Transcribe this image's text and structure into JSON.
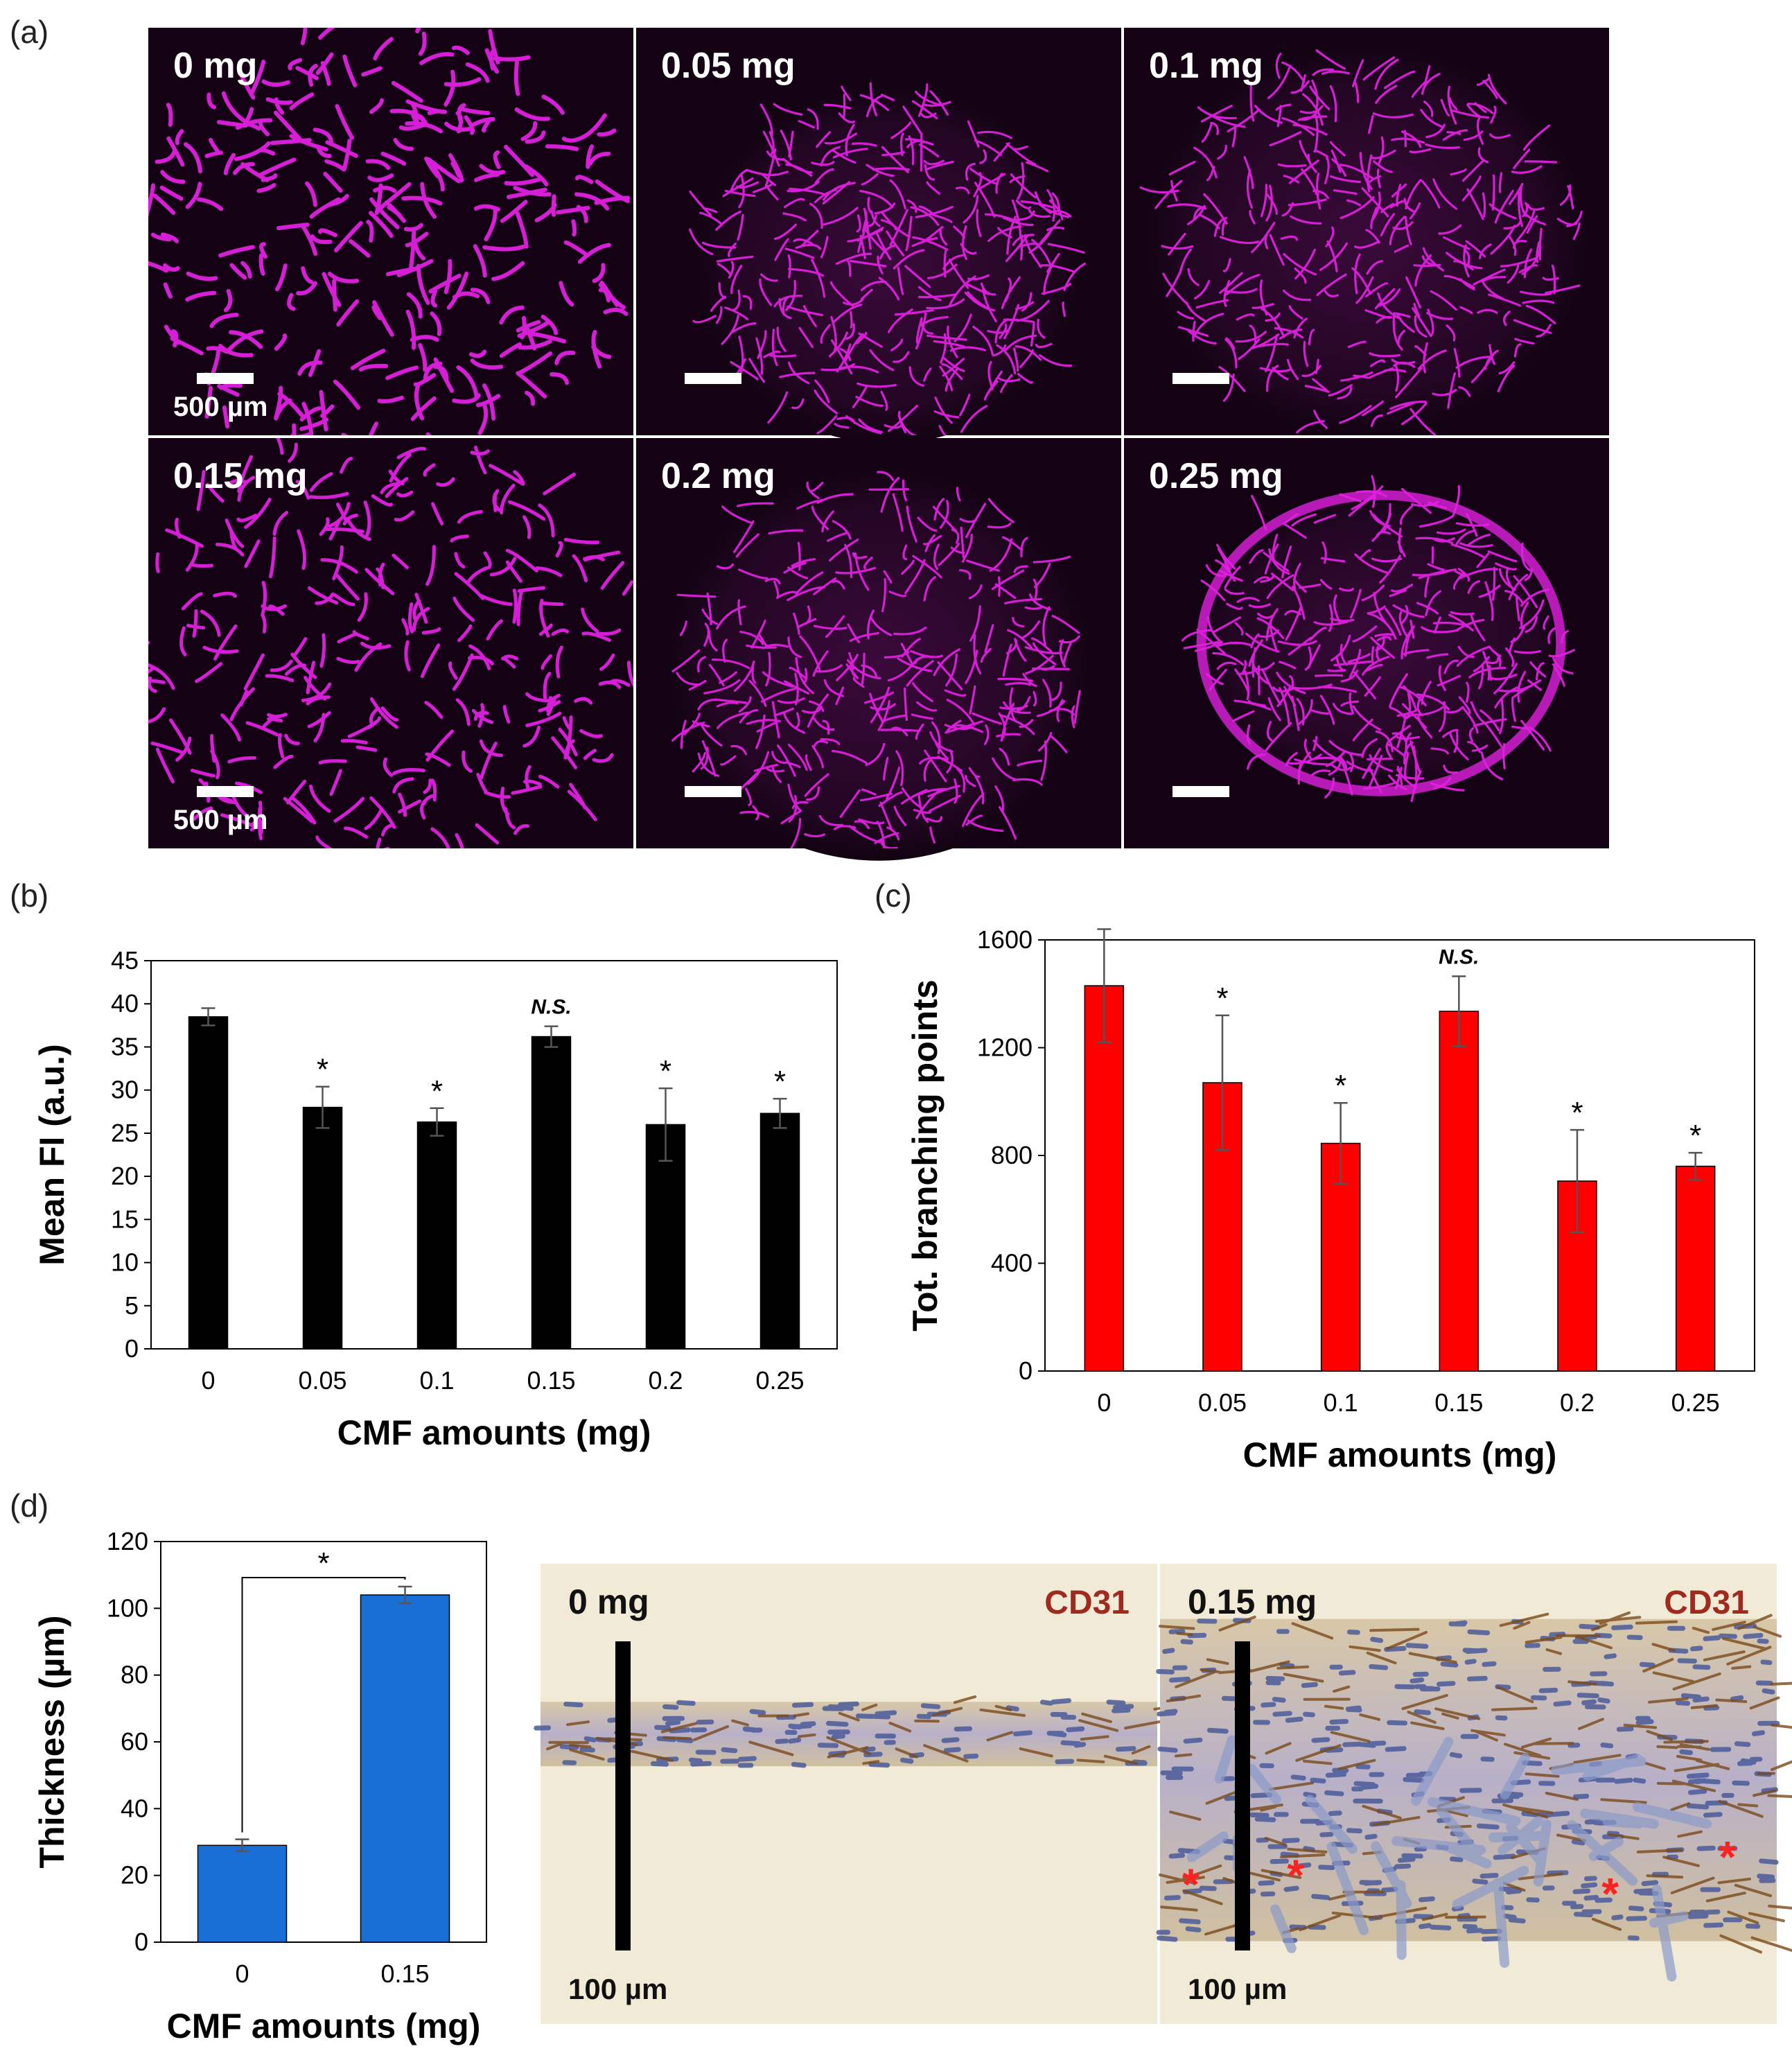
{
  "panel_letters": {
    "a": "(a)",
    "b": "(b)",
    "c": "(c)",
    "d": "(d)"
  },
  "panel_a": {
    "images": [
      {
        "label": "0 mg",
        "scale_label": "500 µm"
      },
      {
        "label": "0.05 mg",
        "scale_label": ""
      },
      {
        "label": "0.1 mg",
        "scale_label": ""
      },
      {
        "label": "0.15 mg",
        "scale_label": "500 µm"
      },
      {
        "label": "0.2 mg",
        "scale_label": ""
      },
      {
        "label": "0.25 mg",
        "scale_label": ""
      }
    ],
    "vessel_color": "#e020e0"
  },
  "panel_d_images": [
    {
      "label": "0 mg",
      "stain": "CD31",
      "scale_label": "100 µm"
    },
    {
      "label": "0.15 mg",
      "stain": "CD31",
      "scale_label": "100 µm"
    }
  ],
  "chart_data": [
    {
      "type": "bar",
      "panel": "b",
      "categories": [
        "0",
        "0.05",
        "0.1",
        "0.15",
        "0.2",
        "0.25"
      ],
      "values": [
        38.5,
        28.0,
        26.3,
        36.2,
        26.0,
        27.3
      ],
      "errors": [
        1.0,
        2.4,
        1.6,
        1.2,
        4.2,
        1.7
      ],
      "markers": [
        "",
        "*",
        "*",
        "N.S.",
        "*",
        "*"
      ],
      "xlabel": "CMF amounts (mg)",
      "ylabel": "Mean FI (a.u.)",
      "ylim": [
        0,
        45
      ],
      "yticks": [
        "0",
        "5",
        "10",
        "15",
        "20",
        "25",
        "30",
        "35",
        "40",
        "45"
      ],
      "color": "#000000"
    },
    {
      "type": "bar",
      "panel": "c",
      "categories": [
        "0",
        "0.05",
        "0.1",
        "0.15",
        "0.2",
        "0.25"
      ],
      "values": [
        1430,
        1070,
        845,
        1335,
        705,
        760
      ],
      "errors": [
        210,
        250,
        150,
        130,
        190,
        50
      ],
      "markers": [
        "",
        "*",
        "*",
        "N.S.",
        "*",
        "*"
      ],
      "xlabel": "CMF amounts (mg)",
      "ylabel": "Tot. branching points",
      "ylim": [
        0,
        1600
      ],
      "yticks": [
        "0",
        "400",
        "800",
        "1200",
        "1600"
      ],
      "color": "#ff0000"
    },
    {
      "type": "bar",
      "panel": "d",
      "categories": [
        "0",
        "0.15"
      ],
      "values": [
        29,
        104
      ],
      "errors": [
        1.8,
        2.5
      ],
      "bracket_marker": "*",
      "xlabel": "CMF amounts (mg)",
      "ylabel": "Thickness (µm)",
      "ylim": [
        0,
        120
      ],
      "yticks": [
        "0",
        "20",
        "40",
        "60",
        "80",
        "100",
        "120"
      ],
      "color": "#1a6fd6"
    }
  ]
}
